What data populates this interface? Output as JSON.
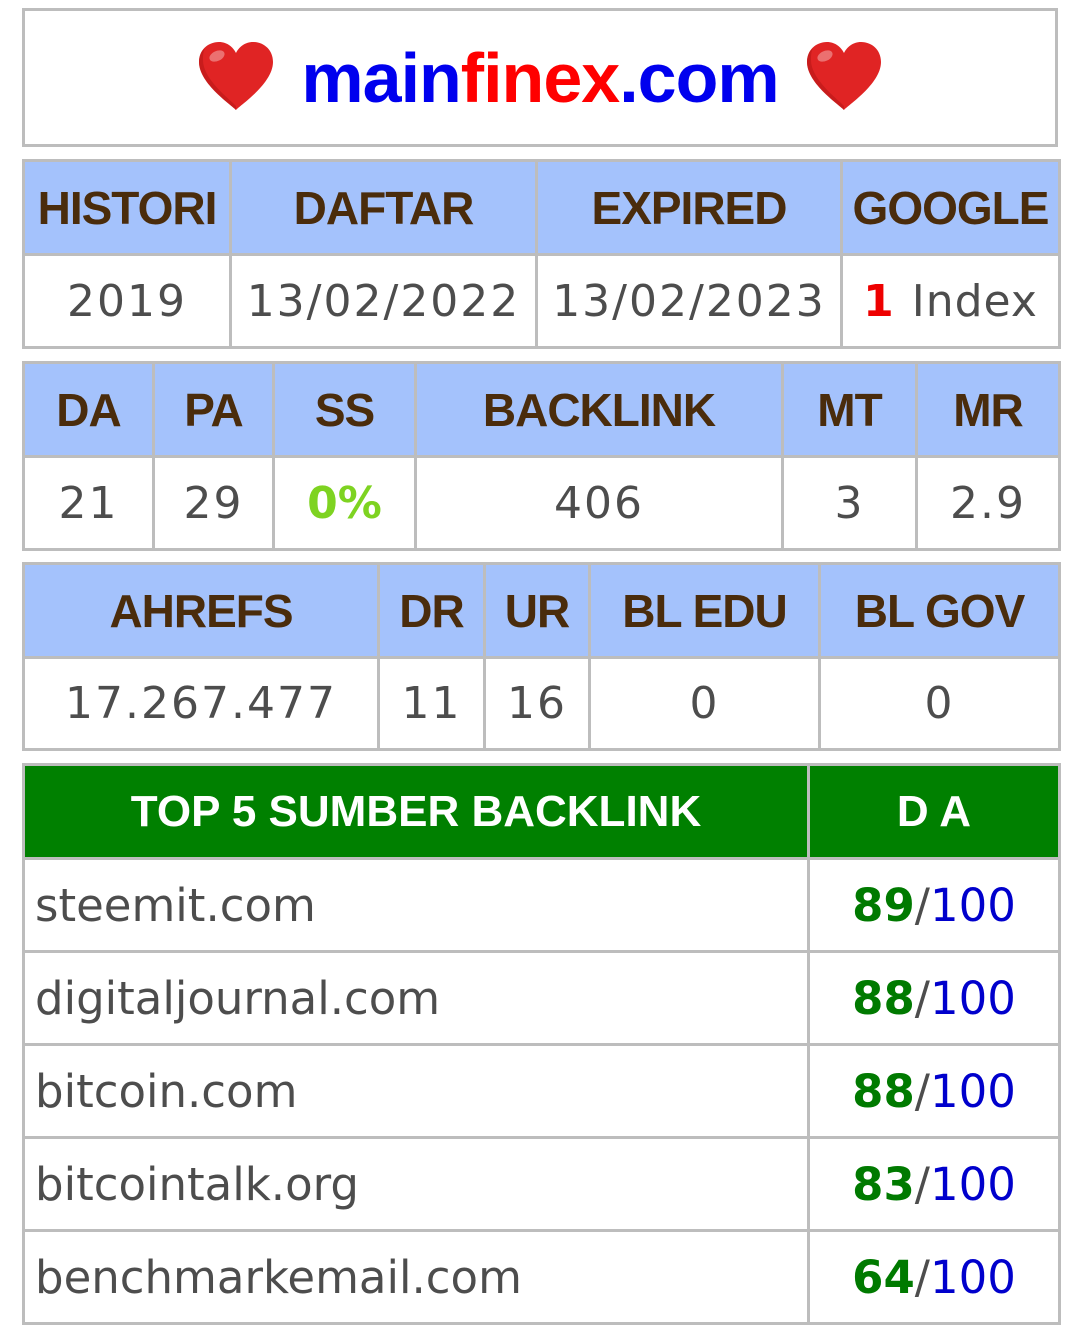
{
  "header": {
    "domain_part1": "main",
    "domain_part2": "finex",
    "domain_part3": ".com",
    "left_icon": "heart-icon",
    "right_icon": "heart-icon",
    "heart_color": "#e02424"
  },
  "table1": {
    "headers": [
      "HISTORI",
      "DAFTAR",
      "EXPIRED",
      "GOOGLE"
    ],
    "values": {
      "histori": "2019",
      "daftar": "13/02/2022",
      "expired": "13/02/2023",
      "google_count": "1",
      "google_label": "Index"
    }
  },
  "table2": {
    "headers": [
      "DA",
      "PA",
      "SS",
      "BACKLINK",
      "MT",
      "MR"
    ],
    "values": [
      "21",
      "29",
      "0%",
      "406",
      "3",
      "2.9"
    ]
  },
  "table3": {
    "headers": [
      "AHREFS",
      "DR",
      "UR",
      "BL EDU",
      "BL GOV"
    ],
    "values": [
      "17.267.477",
      "11",
      "16",
      "0",
      "0"
    ]
  },
  "top_backlinks": {
    "header_source": "TOP 5 SUMBER BACKLINK",
    "header_da": "D A",
    "separator": "/",
    "rows": [
      {
        "source": "steemit.com",
        "da": "89",
        "max": "100"
      },
      {
        "source": "digitaljournal.com",
        "da": "88",
        "max": "100"
      },
      {
        "source": "bitcoin.com",
        "da": "88",
        "max": "100"
      },
      {
        "source": "bitcointalk.org",
        "da": "83",
        "max": "100"
      },
      {
        "source": "benchmarkemail.com",
        "da": "64",
        "max": "100"
      }
    ]
  },
  "colors": {
    "header_bg": "#a4c2fc",
    "header_text": "#4a2c0c",
    "top_header_bg": "#008000",
    "da_value": "#007a00",
    "da_max": "#0000cc",
    "ss_value": "#7ed321",
    "index_count": "#ee0000",
    "domain_blue": "#0000ee",
    "domain_red": "#ff0000"
  }
}
